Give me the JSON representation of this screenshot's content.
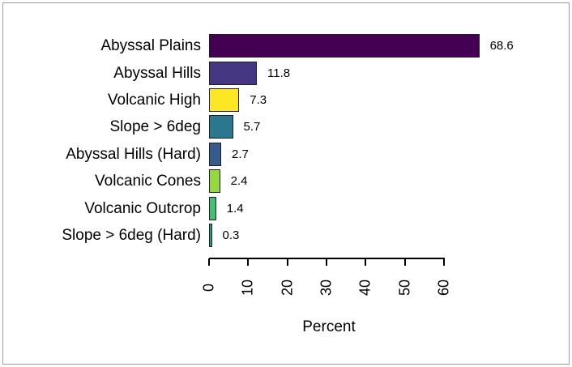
{
  "frame": {
    "background": "#ffffff",
    "border_color": "#9b9b9b"
  },
  "chart_data": {
    "type": "bar",
    "orientation": "horizontal",
    "title": "",
    "xlabel": "Percent",
    "ylabel": "",
    "xlim": [
      0,
      60
    ],
    "x_ticks": [
      "0",
      "10",
      "20",
      "30",
      "40",
      "50",
      "60"
    ],
    "tick_label_rotation_deg": -90,
    "grid": false,
    "legend": "none",
    "value_label_position": "right-of-bar",
    "categories": [
      "Abyssal Plains",
      "Abyssal Hills",
      "Volcanic High",
      "Slope > 6deg",
      "Abyssal Hills (Hard)",
      "Volcanic Cones",
      "Volcanic Outcrop",
      "Slope > 6deg (Hard)"
    ],
    "values": [
      68.6,
      11.8,
      7.3,
      5.7,
      2.7,
      2.4,
      1.4,
      0.3
    ],
    "value_labels": [
      "68.6",
      "11.8",
      "7.3",
      "5.7",
      "2.7",
      "2.4",
      "1.4",
      "0.3"
    ],
    "bar_colors": [
      "#440154",
      "#453781",
      "#FDE725",
      "#2A788E",
      "#365C8D",
      "#95D840",
      "#44BF70",
      "#1FA187"
    ],
    "bar_border_color": "#1f1f1f",
    "axis_color": "#000000",
    "text_color": "#000000"
  }
}
